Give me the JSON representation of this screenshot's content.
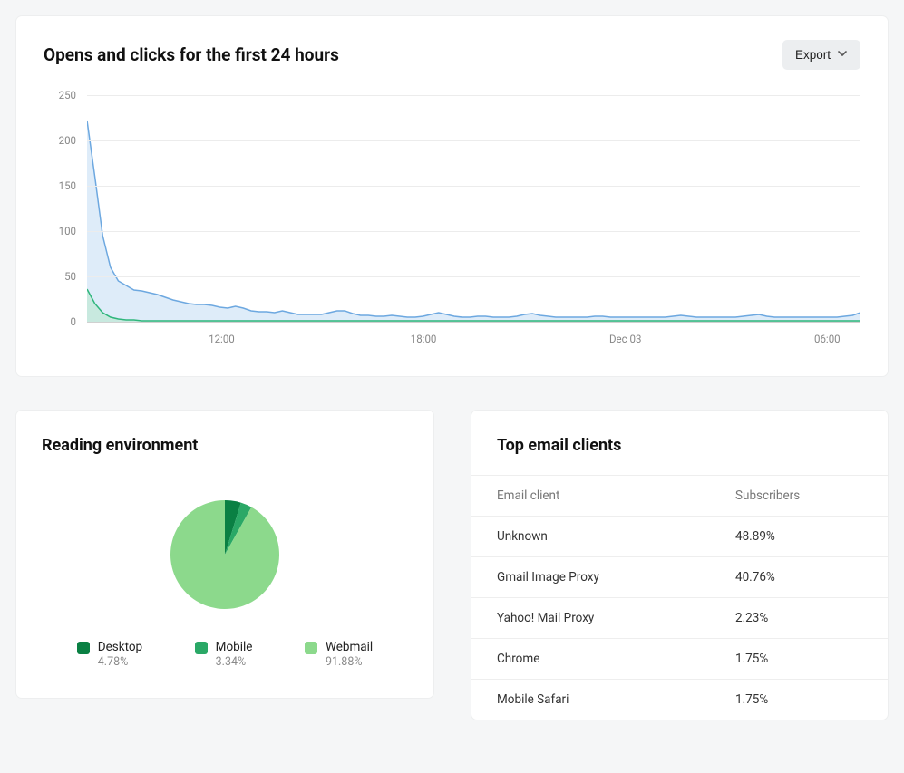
{
  "main_chart": {
    "title": "Opens and clicks for the first 24 hours",
    "export_label": "Export",
    "type": "area",
    "y_axis": {
      "min": 0,
      "max": 250,
      "step": 50,
      "labels": [
        "0",
        "50",
        "100",
        "150",
        "200",
        "250"
      ]
    },
    "x_axis": {
      "labels": [
        "12:00",
        "18:00",
        "Dec 03",
        "06:00"
      ],
      "label_positions_pct": [
        17.4,
        43.5,
        69.6,
        95.7
      ]
    },
    "grid_color": "#ececec",
    "baseline_color": "#d0d0d0",
    "series": [
      {
        "name": "opens",
        "stroke": "#6da8e0",
        "fill": "#d8e9f8",
        "fill_opacity": 0.85,
        "stroke_width": 1.5,
        "values": [
          222,
          160,
          95,
          60,
          45,
          40,
          35,
          34,
          32,
          30,
          27,
          24,
          22,
          20,
          19,
          19,
          18,
          16,
          15,
          17,
          15,
          12,
          11,
          11,
          10,
          12,
          10,
          8,
          8,
          8,
          8,
          10,
          12,
          12,
          9,
          7,
          7,
          6,
          6,
          7,
          6,
          5,
          5,
          6,
          8,
          10,
          8,
          6,
          5,
          5,
          6,
          6,
          5,
          5,
          5,
          6,
          8,
          9,
          7,
          6,
          5,
          5,
          5,
          5,
          5,
          6,
          6,
          5,
          5,
          5,
          5,
          5,
          5,
          5,
          5,
          6,
          7,
          6,
          5,
          5,
          5,
          5,
          5,
          5,
          6,
          7,
          8,
          6,
          5,
          5,
          5,
          5,
          5,
          5,
          5,
          5,
          5,
          6,
          7,
          10
        ]
      },
      {
        "name": "clicks",
        "stroke": "#2fb67c",
        "fill": "#bfe8d4",
        "fill_opacity": 0.7,
        "stroke_width": 1.5,
        "values": [
          36,
          20,
          10,
          5,
          3,
          2,
          2,
          1,
          1,
          1,
          1,
          1,
          1,
          1,
          1,
          1,
          1,
          1,
          1,
          1,
          1,
          1,
          1,
          1,
          1,
          1,
          1,
          1,
          1,
          1,
          1,
          1,
          1,
          1,
          1,
          1,
          1,
          1,
          1,
          1,
          1,
          1,
          1,
          1,
          1,
          1,
          1,
          1,
          1,
          1,
          1,
          1,
          1,
          1,
          1,
          1,
          1,
          1,
          1,
          1,
          1,
          1,
          1,
          1,
          1,
          1,
          1,
          1,
          1,
          1,
          1,
          1,
          1,
          1,
          1,
          1,
          1,
          1,
          1,
          1,
          1,
          1,
          1,
          1,
          1,
          1,
          1,
          1,
          1,
          1,
          1,
          1,
          1,
          1,
          1,
          1,
          1,
          1,
          1,
          1
        ]
      }
    ]
  },
  "reading_env": {
    "title": "Reading environment",
    "type": "pie",
    "colors": {
      "desktop": "#0a8043",
      "mobile": "#2aa866",
      "webmail": "#8cd98c"
    },
    "items": [
      {
        "key": "desktop",
        "label": "Desktop",
        "value": "4.78%",
        "pct": 4.78
      },
      {
        "key": "mobile",
        "label": "Mobile",
        "value": "3.34%",
        "pct": 3.34
      },
      {
        "key": "webmail",
        "label": "Webmail",
        "value": "91.88%",
        "pct": 91.88
      }
    ]
  },
  "top_clients": {
    "title": "Top email clients",
    "columns": {
      "client": "Email client",
      "subscribers": "Subscribers"
    },
    "rows": [
      {
        "client": "Unknown",
        "subscribers": "48.89%"
      },
      {
        "client": "Gmail Image Proxy",
        "subscribers": "40.76%"
      },
      {
        "client": "Yahoo! Mail Proxy",
        "subscribers": "2.23%"
      },
      {
        "client": "Chrome",
        "subscribers": "1.75%"
      },
      {
        "client": "Mobile Safari",
        "subscribers": "1.75%"
      }
    ]
  }
}
